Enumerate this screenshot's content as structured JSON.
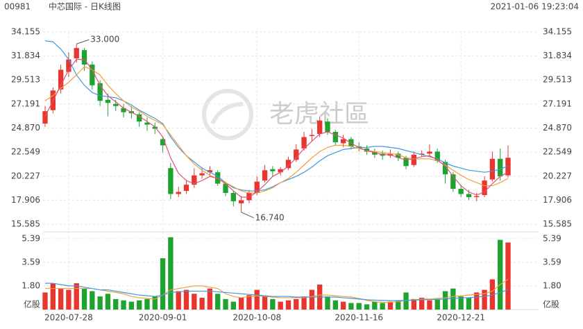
{
  "header": {
    "code": "00981",
    "title": "中芯国际 - 日K线图",
    "time": "2021-01-06 19:23:04"
  },
  "watermark": "老虎社區",
  "chart_data": {
    "type": "candlestick",
    "up_color": "#e8352e",
    "down_color": "#1fa32f",
    "grid": true,
    "categories": [
      null,
      null,
      null,
      "2020-07-28",
      null,
      null,
      null,
      null,
      null,
      null,
      null,
      null,
      null,
      null,
      null,
      "2020-09-01",
      null,
      null,
      null,
      null,
      null,
      null,
      null,
      null,
      null,
      null,
      null,
      "2020-10-08",
      null,
      null,
      null,
      null,
      null,
      null,
      null,
      null,
      null,
      null,
      null,
      null,
      "2020-11-16",
      null,
      null,
      null,
      null,
      null,
      null,
      null,
      null,
      null,
      null,
      null,
      null,
      "2020-12-21",
      null,
      null,
      null,
      null,
      null,
      null
    ],
    "open": [
      25.3,
      26.6,
      28.6,
      30.3,
      31.6,
      32.4,
      31.0,
      29.2,
      27.6,
      27.2,
      26.8,
      26.5,
      26.2,
      25.4,
      25.0,
      23.8,
      21.0,
      18.5,
      18.8,
      19.4,
      20.3,
      20.6,
      20.6,
      19.5,
      18.6,
      17.6,
      17.9,
      18.6,
      19.8,
      20.9,
      20.6,
      21.0,
      21.8,
      22.9,
      24.1,
      24.3,
      25.5,
      24.5,
      23.4,
      23.8,
      23.1,
      22.9,
      22.6,
      22.4,
      22.2,
      22.4,
      22.0,
      21.3,
      22.3,
      22.4,
      22.6,
      21.6,
      20.4,
      19.0,
      18.5,
      18.2,
      18.4,
      19.9,
      21.9,
      20.3
    ],
    "high": [
      27.0,
      28.8,
      31.0,
      32.2,
      33.0,
      32.6,
      31.3,
      29.5,
      28.2,
      27.6,
      27.2,
      27.0,
      26.4,
      25.9,
      25.4,
      24.0,
      21.5,
      19.2,
      19.8,
      21.0,
      21.1,
      21.2,
      20.8,
      19.7,
      18.8,
      18.3,
      18.9,
      20.2,
      21.3,
      21.2,
      21.1,
      22.1,
      23.3,
      24.5,
      24.8,
      26.0,
      25.8,
      24.7,
      24.2,
      24.0,
      23.5,
      23.2,
      22.9,
      22.7,
      22.8,
      22.6,
      22.2,
      22.6,
      22.7,
      23.3,
      22.9,
      21.8,
      20.6,
      19.4,
      18.9,
      18.6,
      20.2,
      22.6,
      22.9,
      23.2
    ],
    "low": [
      25.0,
      26.3,
      28.2,
      29.8,
      31.2,
      30.4,
      28.6,
      27.0,
      26.0,
      26.5,
      25.9,
      25.8,
      25.0,
      24.6,
      24.3,
      22.5,
      18.0,
      18.2,
      18.5,
      19.1,
      20.0,
      20.2,
      19.3,
      18.3,
      17.3,
      16.74,
      17.6,
      18.4,
      19.6,
      20.2,
      20.3,
      20.8,
      21.6,
      22.7,
      23.6,
      24.0,
      24.2,
      23.2,
      23.0,
      22.8,
      22.6,
      22.3,
      22.0,
      21.8,
      22.0,
      21.7,
      20.9,
      21.1,
      22.1,
      22.2,
      21.5,
      19.5,
      18.7,
      18.2,
      17.9,
      17.8,
      18.2,
      19.7,
      19.8,
      20.1
    ],
    "close": [
      26.5,
      28.5,
      30.5,
      31.5,
      32.6,
      31.0,
      29.0,
      27.5,
      27.3,
      27.0,
      26.4,
      26.3,
      25.5,
      25.2,
      24.8,
      23.2,
      18.5,
      18.7,
      19.4,
      20.3,
      20.5,
      20.8,
      19.5,
      18.6,
      17.8,
      17.9,
      18.6,
      19.7,
      20.8,
      20.7,
      20.9,
      21.8,
      22.8,
      24.0,
      24.2,
      25.6,
      24.5,
      23.5,
      23.8,
      23.1,
      22.9,
      22.6,
      22.3,
      22.2,
      22.4,
      22.0,
      21.2,
      22.3,
      22.4,
      22.6,
      21.7,
      20.4,
      19.0,
      18.5,
      18.2,
      18.3,
      19.8,
      21.9,
      20.2,
      22.0
    ],
    "lines": [
      {
        "color": "#3d9ae0",
        "values": [
          33.3,
          33.2,
          32.5,
          31.5,
          30,
          29,
          28.3,
          28,
          27.9,
          27.8,
          27.5,
          27.1,
          26.6,
          26.2,
          25.8,
          25.3,
          24.0,
          23.0,
          22.2,
          21.6,
          21.0,
          20.6,
          20.2,
          19.6,
          19.1,
          18.9,
          18.8,
          18.8,
          18.9,
          19.2,
          19.6,
          19.9,
          20.2,
          20.6,
          21.1,
          21.7,
          22.2,
          22.5,
          22.8,
          22.9,
          23.0,
          23.0,
          23.1,
          23.1,
          23.0,
          22.9,
          22.7,
          22.5,
          22.3,
          22.1,
          21.9,
          21.5,
          21.2,
          21.0,
          20.8,
          20.7,
          20.6,
          20.7,
          20.9,
          21.2
        ]
      },
      {
        "color": "#f39c3c",
        "values": [
          27.5,
          28,
          28.7,
          29.3,
          30,
          30.8,
          30.5,
          30.0,
          29.0,
          28.2,
          27.5,
          26.9,
          26.5,
          26.0,
          25.6,
          25.2,
          24.2,
          23.2,
          22.2,
          21.4,
          20.8,
          20.3,
          20.0,
          19.6,
          19.2,
          18.8,
          18.6,
          18.6,
          18.8,
          19.1,
          19.6,
          20.0,
          20.6,
          21.3,
          22,
          22.6,
          23.0,
          23.2,
          23.2,
          23.1,
          22.9,
          22.7,
          22.6,
          22.5,
          22.4,
          22.3,
          22.0,
          21.9,
          21.9,
          21.9,
          21.7,
          21.3,
          20.8,
          20.3,
          19.9,
          19.6,
          19.3,
          19.3,
          19.6,
          20.0
        ]
      },
      {
        "color": "#e0507a",
        "values": [
          26,
          27.5,
          29,
          30.5,
          31.5,
          31.5,
          30.5,
          29,
          28,
          27.4,
          26.8,
          26.4,
          26,
          25.5,
          25,
          24,
          22,
          20.5,
          19.8,
          19.5,
          19.8,
          20.2,
          20,
          19.5,
          18.8,
          18.2,
          18.2,
          18.7,
          19.4,
          20.2,
          20.6,
          21.2,
          22,
          22.9,
          23.6,
          24.3,
          24.5,
          24.2,
          23.9,
          23.4,
          23.0,
          22.7,
          22.5,
          22.3,
          22.3,
          22.0,
          21.8,
          21.9,
          22.1,
          22.2,
          21.8,
          21.2,
          20.2,
          19.3,
          18.7,
          18.4,
          18.7,
          19.5,
          20.2,
          20.6
        ]
      }
    ],
    "annotations": [
      {
        "value": 33,
        "label": "33.000"
      },
      {
        "value": 16.74,
        "label": "16.740"
      }
    ],
    "ylim": [
      15.585,
      34.155
    ],
    "yticks": [
      15.585,
      17.906,
      20.227,
      22.549,
      {
        "value": 24.87,
        "label": "24.870"
      },
      27.191,
      29.513,
      31.834,
      34.155
    ],
    "volume": {
      "unit": "亿股",
      "values": [
        1.3,
        2.0,
        1.6,
        1.5,
        2.0,
        1.6,
        1.4,
        1.0,
        1.2,
        0.8,
        0.7,
        0.6,
        0.7,
        0.8,
        1.0,
        3.9,
        5.5,
        1.4,
        1.5,
        1.2,
        0.9,
        1.6,
        1.2,
        0.8,
        0.6,
        0.9,
        1.1,
        1.5,
        1.0,
        0.8,
        0.6,
        0.7,
        0.8,
        1.0,
        1.5,
        1.9,
        1.0,
        0.7,
        0.6,
        0.5,
        0.5,
        0.4,
        0.6,
        0.5,
        0.6,
        0.7,
        1.3,
        0.8,
        0.9,
        0.7,
        0.8,
        1.4,
        1.6,
        1.0,
        0.9,
        1.3,
        1.5,
        2.3,
        5.3,
        5.1
      ],
      "lines": [
        {
          "color": "#f39c3c",
          "values": [
            1.6,
            1.6,
            1.6,
            1.6,
            1.6,
            1.6,
            1.6,
            1.5,
            1.4,
            1.3,
            1.2,
            1.0,
            0.9,
            0.85,
            0.8,
            1.1,
            1.5,
            1.6,
            1.7,
            1.8,
            1.8,
            1.7,
            1.6,
            1.2,
            1.0,
            0.9,
            1.0,
            1.05,
            1.0,
            0.95,
            0.9,
            0.9,
            0.9,
            0.9,
            1.0,
            1.1,
            1.1,
            1.05,
            1.0,
            0.95,
            0.85,
            0.7,
            0.6,
            0.55,
            0.55,
            0.6,
            0.7,
            0.75,
            0.8,
            0.8,
            0.85,
            0.9,
            1.0,
            1.05,
            1.1,
            1.15,
            1.2,
            1.4,
            1.9,
            2.3
          ]
        },
        {
          "color": "#3d9ae0",
          "values": [
            2.0,
            2.0,
            1.9,
            1.8,
            1.8,
            1.7,
            1.6,
            1.5,
            1.5,
            1.4,
            1.3,
            1.2,
            1.1,
            1.05,
            1.0,
            1.1,
            1.3,
            1.35,
            1.4,
            1.4,
            1.4,
            1.4,
            1.35,
            1.3,
            1.25,
            1.2,
            1.15,
            1.1,
            1.05,
            1.0,
            1.0,
            1.0,
            0.95,
            0.95,
            0.95,
            0.95,
            0.95,
            0.95,
            0.9,
            0.85,
            0.8,
            0.75,
            0.72,
            0.7,
            0.68,
            0.68,
            0.7,
            0.72,
            0.75,
            0.75,
            0.77,
            0.8,
            0.85,
            0.9,
            0.9,
            0.95,
            1.0,
            1.1,
            1.3,
            1.5
          ]
        }
      ],
      "ylim": [
        0,
        5.7
      ],
      "yticks": [
        {
          "value": 1.8,
          "label": "1.80"
        },
        3.59,
        5.39
      ]
    }
  }
}
